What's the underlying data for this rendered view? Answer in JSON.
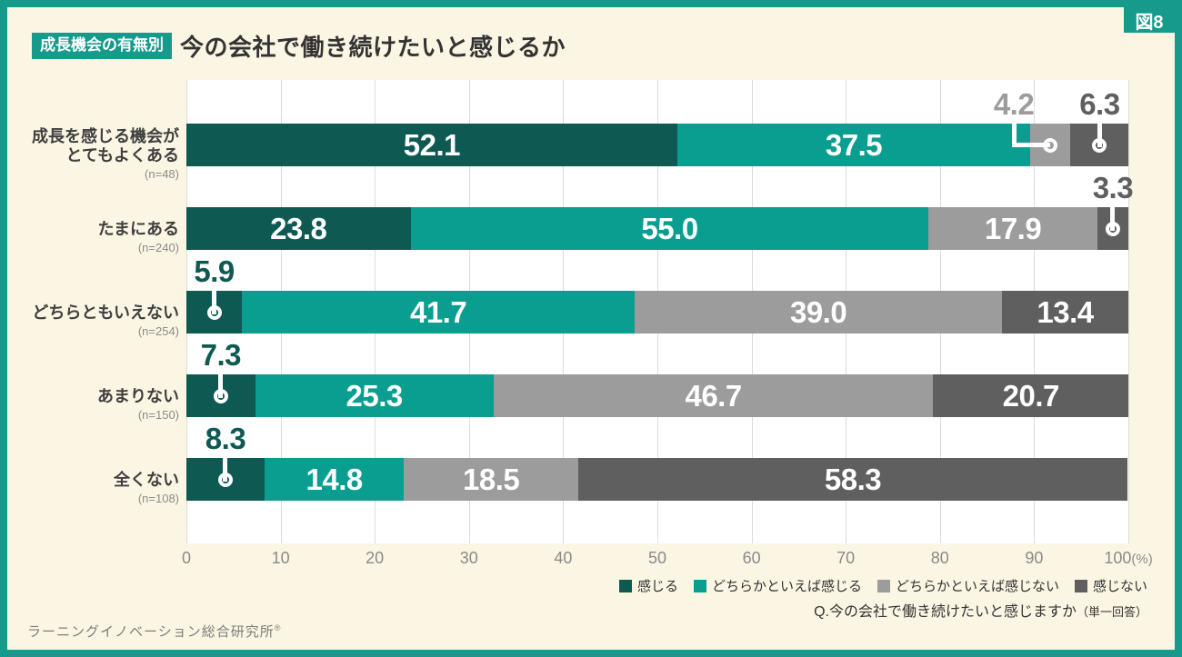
{
  "figure_tag": "図8",
  "header": {
    "badge": "成長機会の有無別",
    "title": "今の会社で働き続けたいと感じるか"
  },
  "chart_data": {
    "type": "bar",
    "stacked": true,
    "orientation": "horizontal",
    "unit": "%",
    "xlim": [
      0,
      100
    ],
    "grid": true,
    "x_ticks": [
      0,
      10,
      20,
      30,
      40,
      50,
      60,
      70,
      80,
      90
    ],
    "x_tick_last": {
      "value": "100",
      "suffix": "(%)"
    },
    "series_names": [
      "感じる",
      "どちらかといえば感じる",
      "どちらかといえば感じない",
      "感じない"
    ],
    "series_colors": [
      "#0E5A53",
      "#0A9E91",
      "#9C9C9C",
      "#5F5F5F"
    ],
    "rows": [
      {
        "label_lines": [
          "成長を感じる機会が",
          "とてもよくある"
        ],
        "n": "(n=48)",
        "values": [
          52.1,
          37.5,
          4.2,
          6.3
        ],
        "labels": [
          "52.1",
          "37.5",
          "4.2",
          "6.3"
        ]
      },
      {
        "label_lines": [
          "たまにある"
        ],
        "n": "(n=240)",
        "values": [
          23.8,
          55.0,
          17.9,
          3.3
        ],
        "labels": [
          "23.8",
          "55.0",
          "17.9",
          "3.3"
        ]
      },
      {
        "label_lines": [
          "どちらともいえない"
        ],
        "n": "(n=254)",
        "values": [
          5.9,
          41.7,
          39.0,
          13.4
        ],
        "labels": [
          "5.9",
          "41.7",
          "39.0",
          "13.4"
        ]
      },
      {
        "label_lines": [
          "あまりない"
        ],
        "n": "(n=150)",
        "values": [
          7.3,
          25.3,
          46.7,
          20.7
        ],
        "labels": [
          "7.3",
          "25.3",
          "46.7",
          "20.7"
        ]
      },
      {
        "label_lines": [
          "全くない"
        ],
        "n": "(n=108)",
        "values": [
          8.3,
          14.8,
          18.5,
          58.3
        ],
        "labels": [
          "8.3",
          "14.8",
          "18.5",
          "58.3"
        ]
      }
    ]
  },
  "legend": [
    {
      "label": "感じる",
      "color": "#0E5A53"
    },
    {
      "label": "どちらかといえば感じる",
      "color": "#0A9E91"
    },
    {
      "label": "どちらかといえば感じない",
      "color": "#9C9C9C"
    },
    {
      "label": "感じない",
      "color": "#5F5F5F"
    }
  ],
  "question": {
    "text": "Q.今の会社で働き続けたいと感じますか",
    "suffix": "（単一回答）"
  },
  "source": {
    "name": "ラーニングイノベーション総合研究所",
    "mark": "®"
  },
  "colors": {
    "frame": "#169A8C",
    "background": "#FBF6E3",
    "plot_bg": "#FFFFFF",
    "grid": "#DBDBDB",
    "tick": "#8A8A8A",
    "title": "#333333",
    "label": "#3F3F3F",
    "value_text": "#FFFFFF"
  }
}
